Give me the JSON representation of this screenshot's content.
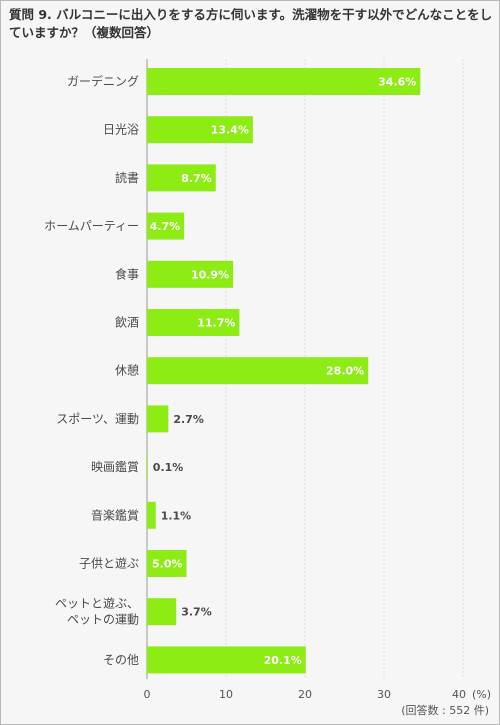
{
  "question": {
    "title": "質問 9. バルコニーに出入りをする方に伺います。洗濯物を干す以外でどんなことをしていますか？（複数回答）"
  },
  "colors": {
    "bar": "#8cec14",
    "grid": "#dcdcdc",
    "axis": "#999999",
    "value_inside": "#ffffff",
    "value_outside": "#4a4a4a"
  },
  "chart_data": {
    "type": "bar",
    "orientation": "horizontal",
    "categories": [
      "ガーデニング",
      "日光浴",
      "読書",
      "ホームパーティー",
      "食事",
      "飲酒",
      "休憩",
      "スポーツ、運動",
      "映画鑑賞",
      "音楽鑑賞",
      "子供と遊ぶ",
      "ペットと遊ぶ、\nペットの運動",
      "その他"
    ],
    "values": [
      34.6,
      13.4,
      8.7,
      4.7,
      10.9,
      11.7,
      28.0,
      2.7,
      0.1,
      1.1,
      5.0,
      3.7,
      20.1
    ],
    "value_labels": [
      "34.6%",
      "13.4%",
      "8.7%",
      "4.7%",
      "10.9%",
      "11.7%",
      "28.0%",
      "2.7%",
      "0.1%",
      "1.1%",
      "5.0%",
      "3.7%",
      "20.1%"
    ],
    "xlim": [
      0,
      40
    ],
    "ticks": [
      0,
      10,
      20,
      30
    ],
    "last_tick_label": "40",
    "unit_label": "(%)",
    "note": "(回答数 : 552 件)",
    "grid": true
  }
}
